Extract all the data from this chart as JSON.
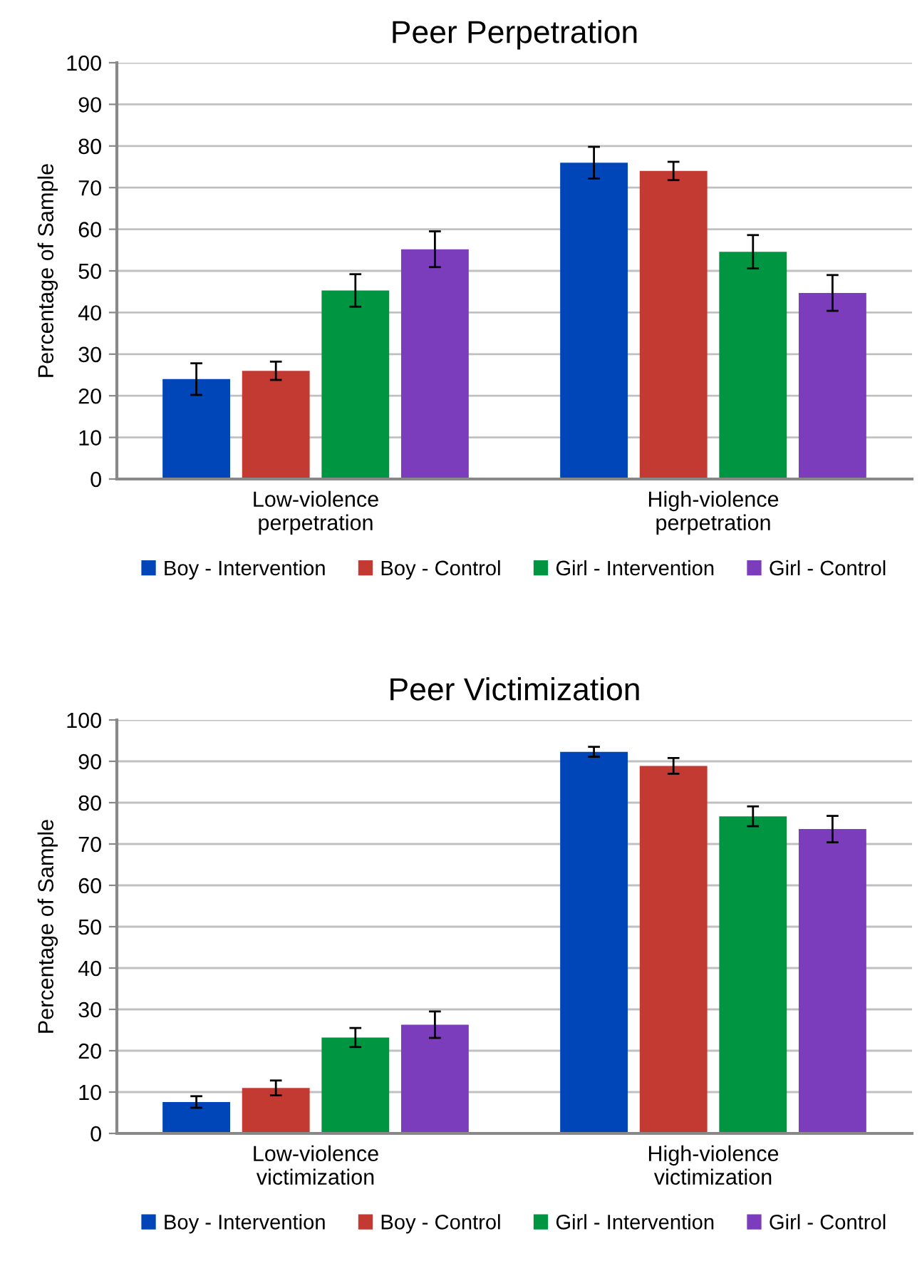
{
  "chart_data": [
    {
      "type": "bar",
      "title": "Peer Perpetration",
      "ylabel": "Percentage of Sample",
      "categories": [
        "Low-violence\nperpetration",
        "High-violence\nperpetration"
      ],
      "ylim": [
        0,
        100
      ],
      "yticks": [
        0,
        10,
        20,
        30,
        40,
        50,
        60,
        70,
        80,
        90,
        100
      ],
      "grid": "y",
      "legend": "bottom",
      "series": [
        {
          "name": "Boy - Intervention",
          "color": "#0046b9",
          "values": [
            24,
            76
          ],
          "errors": [
            3.8,
            3.8
          ]
        },
        {
          "name": "Boy - Control",
          "color": "#c33a33",
          "values": [
            26,
            74
          ],
          "errors": [
            2.2,
            2.2
          ]
        },
        {
          "name": "Girl - Intervention",
          "color": "#009641",
          "values": [
            45.3,
            54.6
          ],
          "errors": [
            3.9,
            4
          ]
        },
        {
          "name": "Girl - Control",
          "color": "#7b3dbb",
          "values": [
            55.2,
            44.7
          ],
          "errors": [
            4.3,
            4.3
          ]
        }
      ]
    },
    {
      "type": "bar",
      "title": "Peer Victimization",
      "ylabel": "Percentage of Sample",
      "categories": [
        "Low-violence\nvictimization",
        "High-violence\nvictimization"
      ],
      "ylim": [
        0,
        100
      ],
      "yticks": [
        0,
        10,
        20,
        30,
        40,
        50,
        60,
        70,
        80,
        90,
        100
      ],
      "grid": "y",
      "legend": "bottom",
      "series": [
        {
          "name": "Boy - Intervention",
          "color": "#0046b9",
          "values": [
            7.6,
            92.3
          ],
          "errors": [
            1.4,
            1.2
          ]
        },
        {
          "name": "Boy - Control",
          "color": "#c33a33",
          "values": [
            11,
            88.9
          ],
          "errors": [
            1.8,
            1.9
          ]
        },
        {
          "name": "Girl - Intervention",
          "color": "#009641",
          "values": [
            23.2,
            76.7
          ],
          "errors": [
            2.3,
            2.4
          ]
        },
        {
          "name": "Girl - Control",
          "color": "#7b3dbb",
          "values": [
            26.3,
            73.6
          ],
          "errors": [
            3.2,
            3.2
          ]
        }
      ]
    }
  ]
}
